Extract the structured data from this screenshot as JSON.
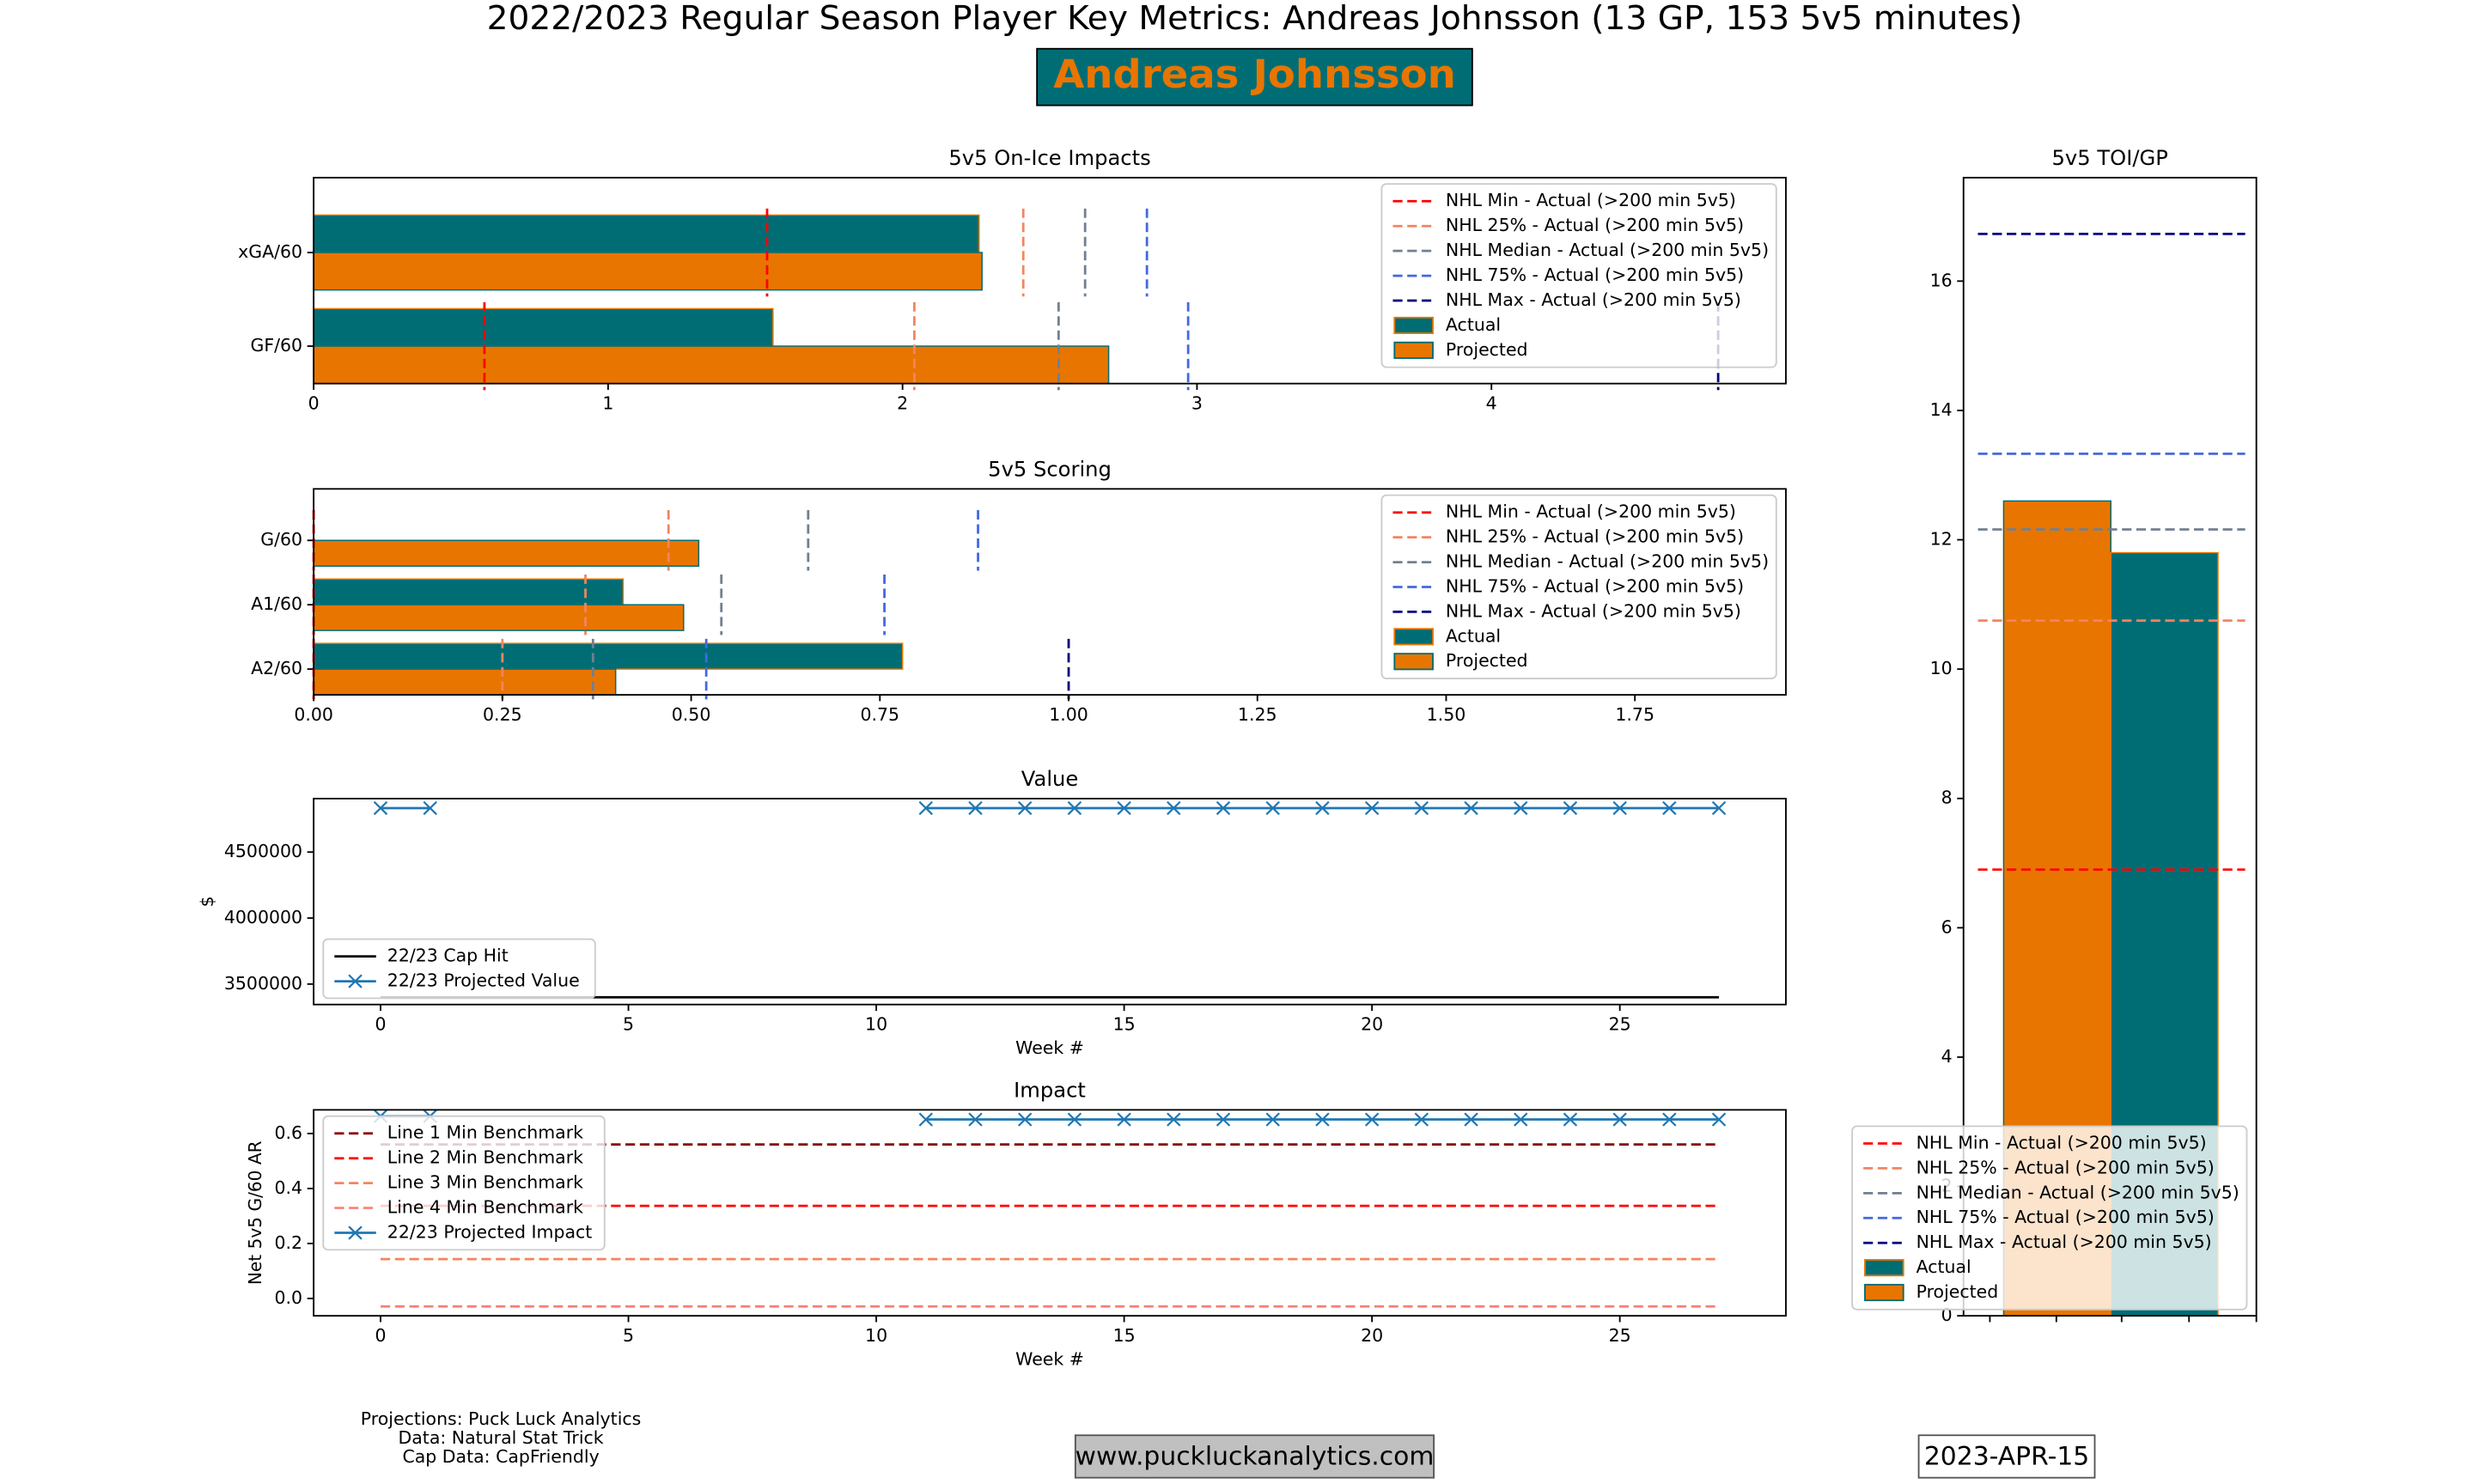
{
  "title": "2022/2023 Regular Season Player Key Metrics: Andreas Johnsson (13 GP, 153 5v5 minutes)",
  "player_name": "Andreas Johnsson",
  "footer": {
    "credits": [
      "Projections: Puck Luck Analytics",
      "Data: Natural Stat Trick",
      "Cap Data: CapFriendly"
    ],
    "website": "www.puckluckanalytics.com",
    "date": "2023-APR-15"
  },
  "chart_data": [
    {
      "type": "hbar",
      "title": "5v5 On-Ice Impacts",
      "categories": [
        "xGA/60",
        "GF/60"
      ],
      "series": [
        {
          "name": "Actual",
          "color": "#006d75",
          "values": [
            2.26,
            1.56
          ]
        },
        {
          "name": "Projected",
          "color": "#e87500",
          "values": [
            2.27,
            2.7
          ]
        }
      ],
      "benchmarks": [
        {
          "name": "NHL Min - Actual (>200 min 5v5)",
          "color": "#ff0000",
          "values": [
            1.54,
            0.58
          ]
        },
        {
          "name": "NHL 25% - Actual (>200 min 5v5)",
          "color": "#f4845f",
          "values": [
            2.41,
            2.04
          ]
        },
        {
          "name": "NHL Median - Actual (>200 min 5v5)",
          "color": "#708090",
          "values": [
            2.62,
            2.53
          ]
        },
        {
          "name": "NHL 75% - Actual (>200 min 5v5)",
          "color": "#4169e1",
          "values": [
            2.83,
            2.97
          ]
        },
        {
          "name": "NHL Max - Actual (>200 min 5v5)",
          "color": "#000080",
          "values": [
            null,
            4.77
          ]
        }
      ],
      "xlim": [
        0,
        5.0
      ],
      "xticks": [
        0,
        1,
        2,
        3,
        4
      ],
      "legend": "upper right"
    },
    {
      "type": "hbar",
      "title": "5v5 Scoring",
      "categories": [
        "G/60",
        "A1/60",
        "A2/60"
      ],
      "series": [
        {
          "name": "Actual",
          "color": "#006d75",
          "values": [
            0,
            0.41,
            0.78
          ]
        },
        {
          "name": "Projected",
          "color": "#e87500",
          "values": [
            0.51,
            0.49,
            0.4
          ]
        }
      ],
      "benchmarks": [
        {
          "name": "NHL Min - Actual (>200 min 5v5)",
          "color": "#ff0000",
          "values": [
            0,
            0,
            0
          ]
        },
        {
          "name": "NHL 25% - Actual (>200 min 5v5)",
          "color": "#f4845f",
          "values": [
            0.47,
            0.36,
            0.25
          ]
        },
        {
          "name": "NHL Median - Actual (>200 min 5v5)",
          "color": "#708090",
          "values": [
            0.655,
            0.54,
            0.37
          ]
        },
        {
          "name": "NHL 75% - Actual (>200 min 5v5)",
          "color": "#4169e1",
          "values": [
            0.88,
            0.756,
            0.52
          ]
        },
        {
          "name": "NHL Max - Actual (>200 min 5v5)",
          "color": "#000080",
          "values": [
            null,
            null,
            1.0
          ]
        }
      ],
      "xlim": [
        0,
        1.95
      ],
      "xticks": [
        {
          "value": 0,
          "label": "0.00"
        },
        0.25,
        {
          "value": 0.5,
          "label": "0.50"
        },
        0.75,
        {
          "value": 1,
          "label": "1.00"
        },
        1.25,
        {
          "value": 1.5,
          "label": "1.50"
        },
        1.75
      ],
      "legend": "upper right"
    },
    {
      "type": "line",
      "title": "Value",
      "xlabel": "Week #",
      "ylabel": "$",
      "x": [
        0,
        1,
        2,
        3,
        4,
        5,
        6,
        7,
        8,
        9,
        10,
        11,
        12,
        13,
        14,
        15,
        16,
        17,
        18,
        19,
        20,
        21,
        22,
        23,
        24,
        25,
        26,
        27
      ],
      "series": [
        {
          "name": "22/23 Cap Hit",
          "color": "#000000",
          "marker": "none",
          "values": [
            3400000,
            3400000,
            3400000,
            3400000,
            3400000,
            3400000,
            3400000,
            3400000,
            3400000,
            3400000,
            3400000,
            3400000,
            3400000,
            3400000,
            3400000,
            3400000,
            3400000,
            3400000,
            3400000,
            3400000,
            3400000,
            3400000,
            3400000,
            3400000,
            3400000,
            3400000,
            3400000,
            3400000
          ]
        },
        {
          "name": "22/23 Projected Value",
          "color": "#1f77b4",
          "marker": "x",
          "values": [
            4833000,
            4833000,
            null,
            null,
            null,
            null,
            null,
            null,
            null,
            null,
            null,
            4833000,
            4833000,
            4833000,
            4833000,
            4833000,
            4833000,
            4833000,
            4833000,
            4833000,
            4833000,
            4833000,
            4833000,
            4833000,
            4833000,
            4833000,
            4833000,
            4833000
          ]
        }
      ],
      "xlim": [
        -1.35,
        28.35
      ],
      "xticks": [
        0,
        5,
        10,
        15,
        20,
        25
      ],
      "ylim": [
        3345000,
        4905000
      ],
      "yticks": [
        3500000,
        4000000,
        4500000
      ],
      "legend": "lower left"
    },
    {
      "type": "line",
      "title": "Impact",
      "xlabel": "Week #",
      "ylabel": "Net 5v5 G/60 AR",
      "x": [
        0,
        1,
        2,
        3,
        4,
        5,
        6,
        7,
        8,
        9,
        10,
        11,
        12,
        13,
        14,
        15,
        16,
        17,
        18,
        19,
        20,
        21,
        22,
        23,
        24,
        25,
        26,
        27
      ],
      "benchmarks": [
        {
          "name": "Line 1 Min Benchmark",
          "color": "#8b0000",
          "value": 0.56
        },
        {
          "name": "Line 2 Min Benchmark",
          "color": "#ff0000",
          "value": 0.337
        },
        {
          "name": "Line 3 Min Benchmark",
          "color": "#f4845f",
          "value": 0.143
        },
        {
          "name": "Line 4 Min Benchmark",
          "color": "#fa8072",
          "value": -0.029
        }
      ],
      "series": [
        {
          "name": "22/23 Projected Impact",
          "color": "#1f77b4",
          "marker": "x",
          "values": [
            0.663,
            0.663,
            null,
            null,
            null,
            null,
            null,
            null,
            null,
            null,
            null,
            0.651,
            0.651,
            0.651,
            0.651,
            0.651,
            0.651,
            0.651,
            0.651,
            0.651,
            0.651,
            0.651,
            0.651,
            0.651,
            0.651,
            0.651,
            0.651,
            0.651
          ]
        }
      ],
      "xlim": [
        -1.35,
        28.35
      ],
      "xticks": [
        0,
        5,
        10,
        15,
        20,
        25
      ],
      "ylim": [
        -0.063,
        0.686
      ],
      "yticks": [
        {
          "value": 0,
          "label": "0.0"
        },
        0.2,
        0.4,
        0.6
      ],
      "legend": "upper left"
    },
    {
      "type": "vbar",
      "title": "5v5 TOI/GP",
      "series": [
        {
          "name": "Actual",
          "color": "#006d75",
          "values": [
            11.8
          ]
        },
        {
          "name": "Projected",
          "color": "#e87500",
          "values": [
            12.6
          ]
        }
      ],
      "benchmarks": [
        {
          "name": "NHL Min - Actual (>200 min 5v5)",
          "color": "#ff0000",
          "value": 6.9
        },
        {
          "name": "NHL 25% - Actual (>200 min 5v5)",
          "color": "#f4845f",
          "value": 10.75
        },
        {
          "name": "NHL Median - Actual (>200 min 5v5)",
          "color": "#708090",
          "value": 12.16
        },
        {
          "name": "NHL 75% - Actual (>200 min 5v5)",
          "color": "#4169e1",
          "value": 13.33
        },
        {
          "name": "NHL Max - Actual (>200 min 5v5)",
          "color": "#000080",
          "value": 16.73
        }
      ],
      "ylim": [
        0,
        17.6
      ],
      "yticks": [
        0,
        2,
        4,
        6,
        8,
        10,
        12,
        14,
        16
      ],
      "legend": "lower right"
    }
  ]
}
